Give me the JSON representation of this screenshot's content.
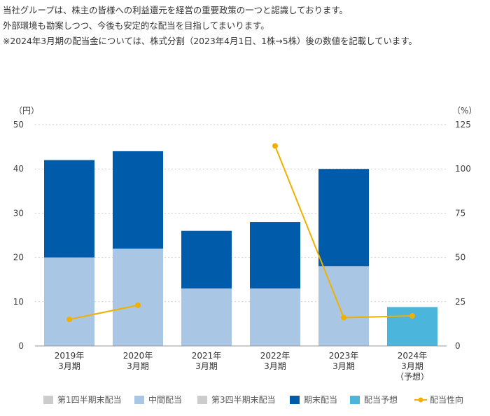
{
  "intro": {
    "lines": [
      "当社グループは、株主の皆様への利益還元を経営の重要政策の一つと認識しております。",
      "外部環境も勘案しつつ、今後も安定的な配当を目指してまいります。",
      "※2024年3月期の配当金については、株式分割（2023年4月1日、1株→5株）後の数値を記載しています。"
    ]
  },
  "chart_data": {
    "type": "bar",
    "stacked": true,
    "y_unit_left": "（円）",
    "y_unit_right": "（%）",
    "ylim": [
      0,
      50
    ],
    "y2lim": [
      0,
      125
    ],
    "yticks": [
      0,
      10,
      20,
      30,
      40,
      50
    ],
    "y2ticks": [
      0,
      25,
      50,
      75,
      100,
      125
    ],
    "grid": true,
    "legend_position": "bottom",
    "categories": [
      [
        "2019年",
        "3月期"
      ],
      [
        "2020年",
        "3月期"
      ],
      [
        "2021年",
        "3月期"
      ],
      [
        "2022年",
        "3月期"
      ],
      [
        "2023年",
        "3月期"
      ],
      [
        "2024年",
        "3月期",
        "（予想）"
      ]
    ],
    "series": [
      {
        "name": "第1四半期末配当",
        "kind": "bar",
        "color": "#cccccc",
        "values": [
          0,
          0,
          0,
          0,
          0,
          0
        ]
      },
      {
        "name": "中間配当",
        "kind": "bar",
        "color": "#a9c6e4",
        "values": [
          20,
          22,
          13,
          13,
          18,
          0
        ]
      },
      {
        "name": "第3四半期末配当",
        "kind": "bar",
        "color": "#cccccc",
        "values": [
          0,
          0,
          0,
          0,
          0,
          0
        ]
      },
      {
        "name": "期末配当",
        "kind": "bar",
        "color": "#005bab",
        "values": [
          22,
          22,
          13,
          15,
          22,
          0
        ]
      },
      {
        "name": "配当予想",
        "kind": "bar",
        "color": "#4bb5dc",
        "values": [
          0,
          0,
          0,
          0,
          0,
          8.8
        ]
      },
      {
        "name": "配当性向",
        "kind": "line",
        "color": "#f0b000",
        "axis": "right",
        "values": [
          15,
          23,
          null,
          113,
          16,
          17
        ]
      }
    ]
  }
}
